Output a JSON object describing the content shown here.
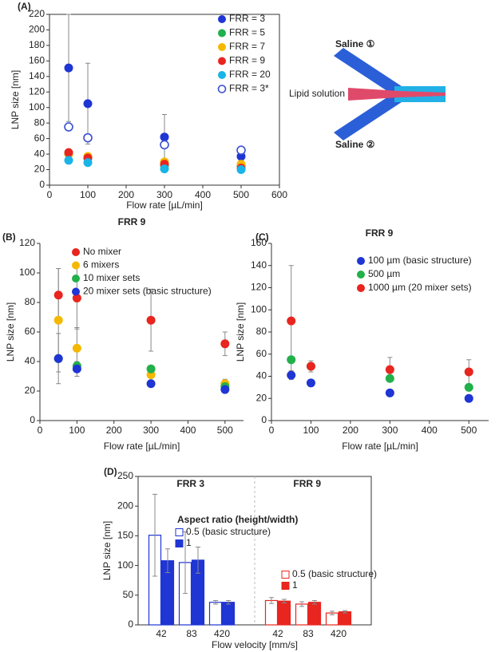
{
  "chart_data": [
    {
      "type": "scatter",
      "panel_label": "(A)",
      "x_label": "Flow rate [µL/min]",
      "y_label": "LNP size [nm]",
      "xlim": [
        0,
        600
      ],
      "xticks": [
        0,
        100,
        200,
        300,
        400,
        500,
        600
      ],
      "ylim": [
        0,
        220
      ],
      "yticks": [
        0,
        20,
        40,
        60,
        80,
        100,
        120,
        140,
        160,
        180,
        200,
        220
      ],
      "legend": "upper right",
      "x": [
        50,
        100,
        300,
        500
      ],
      "series": [
        {
          "name": "FRR = 3",
          "color": "#1f35d4",
          "filled": true,
          "values": [
            151,
            105,
            62,
            37
          ],
          "errors": [
            69,
            52,
            29,
            3
          ]
        },
        {
          "name": "FRR = 5",
          "color": "#22b04a",
          "filled": true,
          "values": [
            40,
            35,
            25,
            25
          ]
        },
        {
          "name": "FRR = 7",
          "color": "#f5b800",
          "filled": true,
          "values": [
            40,
            37,
            30,
            27
          ]
        },
        {
          "name": "FRR = 9",
          "color": "#e8251f",
          "filled": true,
          "values": [
            42,
            35,
            27,
            22
          ]
        },
        {
          "name": "FRR = 20",
          "color": "#19b4e8",
          "filled": true,
          "values": [
            32,
            29,
            21,
            20
          ]
        },
        {
          "name": "FRR = 3*",
          "color": "#3a4fd0",
          "filled": false,
          "values": [
            75,
            61,
            52,
            45
          ]
        }
      ]
    },
    {
      "type": "scatter",
      "panel_label": "(B)",
      "title": "FRR  9",
      "x_label": "Flow rate [µL/min]",
      "y_label": "LNP size [nm]",
      "xlim": [
        0,
        550
      ],
      "xticks": [
        0,
        100,
        200,
        300,
        400,
        500
      ],
      "ylim": [
        0,
        120
      ],
      "yticks": [
        0,
        20,
        40,
        60,
        80,
        100,
        120
      ],
      "legend": "upper left",
      "x": [
        50,
        100,
        300,
        500
      ],
      "series": [
        {
          "name": "No mixer",
          "color": "#e8251f",
          "filled": true,
          "values": [
            85,
            83,
            68,
            52
          ],
          "errors": [
            18,
            21,
            21,
            8
          ]
        },
        {
          "name": "6 mixers",
          "color": "#f5b800",
          "filled": true,
          "values": [
            68,
            49,
            31,
            25
          ],
          "errors": [
            35,
            14,
            null,
            3
          ]
        },
        {
          "name": "10 mixer sets",
          "color": "#22b04a",
          "filled": true,
          "values": [
            42,
            37,
            35,
            23
          ]
        },
        {
          "name": "20 mixer sets (basic structure)",
          "color": "#1f35d4",
          "filled": true,
          "values": [
            42,
            35,
            25,
            21
          ],
          "errors": [
            17,
            5,
            null,
            2
          ]
        }
      ]
    },
    {
      "type": "scatter",
      "panel_label": "(C)",
      "title": "FRR 9",
      "x_label": "Flow rate [µL/min]",
      "y_label": "LNP size [nm]",
      "xlim": [
        0,
        550
      ],
      "xticks": [
        0,
        100,
        200,
        300,
        400,
        500
      ],
      "ylim": [
        0,
        160
      ],
      "yticks": [
        0,
        20,
        40,
        60,
        80,
        100,
        120,
        140,
        160
      ],
      "legend": "upper right",
      "x": [
        50,
        100,
        300,
        500
      ],
      "series": [
        {
          "name": "100 µm (basic structure)",
          "color": "#1f35d4",
          "filled": true,
          "values": [
            41,
            34,
            25,
            20
          ],
          "errors": [
            4,
            3,
            null,
            null
          ]
        },
        {
          "name": "500 µm",
          "color": "#22b04a",
          "filled": true,
          "values": [
            55,
            49,
            38,
            30
          ]
        },
        {
          "name": "1000 µm (20 mixer sets)",
          "color": "#e8251f",
          "filled": true,
          "values": [
            90,
            49,
            46,
            44
          ],
          "errors": [
            50,
            5,
            11,
            11
          ]
        }
      ]
    },
    {
      "type": "bar",
      "panel_label": "(D)",
      "x_label": "Flow velocity  [mm/s]",
      "y_label": "LNP size [nm]",
      "ylim": [
        0,
        250
      ],
      "yticks": [
        0,
        50,
        100,
        150,
        200,
        250
      ],
      "legend_title": "Aspect ratio    (height/width)",
      "groups": [
        {
          "label": "FRR 3",
          "color": "#1f35d4",
          "categories": [
            "42",
            "83",
            "420"
          ],
          "series": [
            {
              "name": "0.5  (basic structure)",
              "filled": false,
              "values": [
                151,
                105,
                38
              ],
              "errors": [
                69,
                52,
                3
              ]
            },
            {
              "name": "1",
              "filled": true,
              "values": [
                108,
                109,
                38
              ],
              "errors": [
                20,
                22,
                3
              ]
            }
          ]
        },
        {
          "label": "FRR 9",
          "color": "#e8251f",
          "categories": [
            "42",
            "83",
            "420"
          ],
          "series": [
            {
              "name": "0.5  (basic structure)",
              "filled": false,
              "values": [
                41,
                35,
                20
              ],
              "errors": [
                5,
                4,
                3
              ]
            },
            {
              "name": "1",
              "filled": true,
              "values": [
                40,
                38,
                22
              ],
              "errors": [
                3,
                3,
                2
              ]
            }
          ]
        }
      ]
    }
  ],
  "diagram": {
    "saline_top": "Saline ①",
    "lipid": "Lipid solution",
    "saline_bottom": "Saline ②"
  }
}
